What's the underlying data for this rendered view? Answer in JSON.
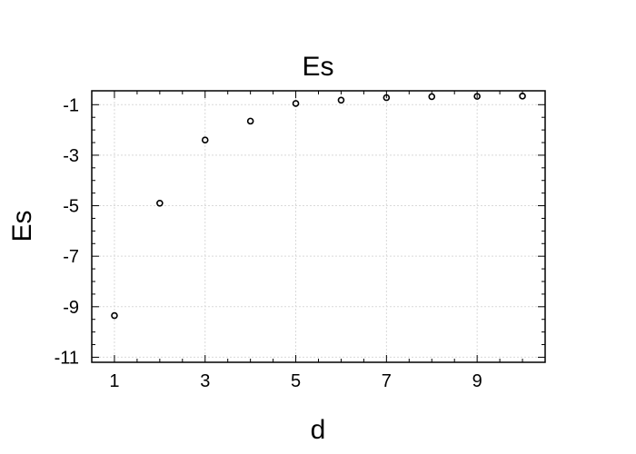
{
  "chart_data": {
    "type": "scatter",
    "title": "Es",
    "xlabel": "d",
    "ylabel": "Es",
    "xlim": [
      0.5,
      10.5
    ],
    "ylim": [
      -11.2,
      -0.45
    ],
    "x_ticks": [
      1,
      3,
      5,
      7,
      9
    ],
    "x_tick_labels": [
      "1",
      "3",
      "5",
      "7",
      "9"
    ],
    "y_ticks": [
      -1,
      -3,
      -5,
      -7,
      -9,
      -11
    ],
    "y_tick_labels": [
      "-1",
      "-3",
      "-5",
      "-7",
      "-9",
      "-11"
    ],
    "grid": true,
    "marker": "open-circle",
    "colors": {
      "marker": "#000000",
      "axes": "#000000",
      "grid": "#d9d9d9"
    },
    "series": [
      {
        "x": [
          1,
          2,
          3,
          4,
          5,
          6,
          7,
          8,
          9,
          10
        ],
        "y": [
          -9.35,
          -4.9,
          -2.4,
          -1.65,
          -0.95,
          -0.82,
          -0.72,
          -0.68,
          -0.67,
          -0.66
        ]
      }
    ]
  }
}
